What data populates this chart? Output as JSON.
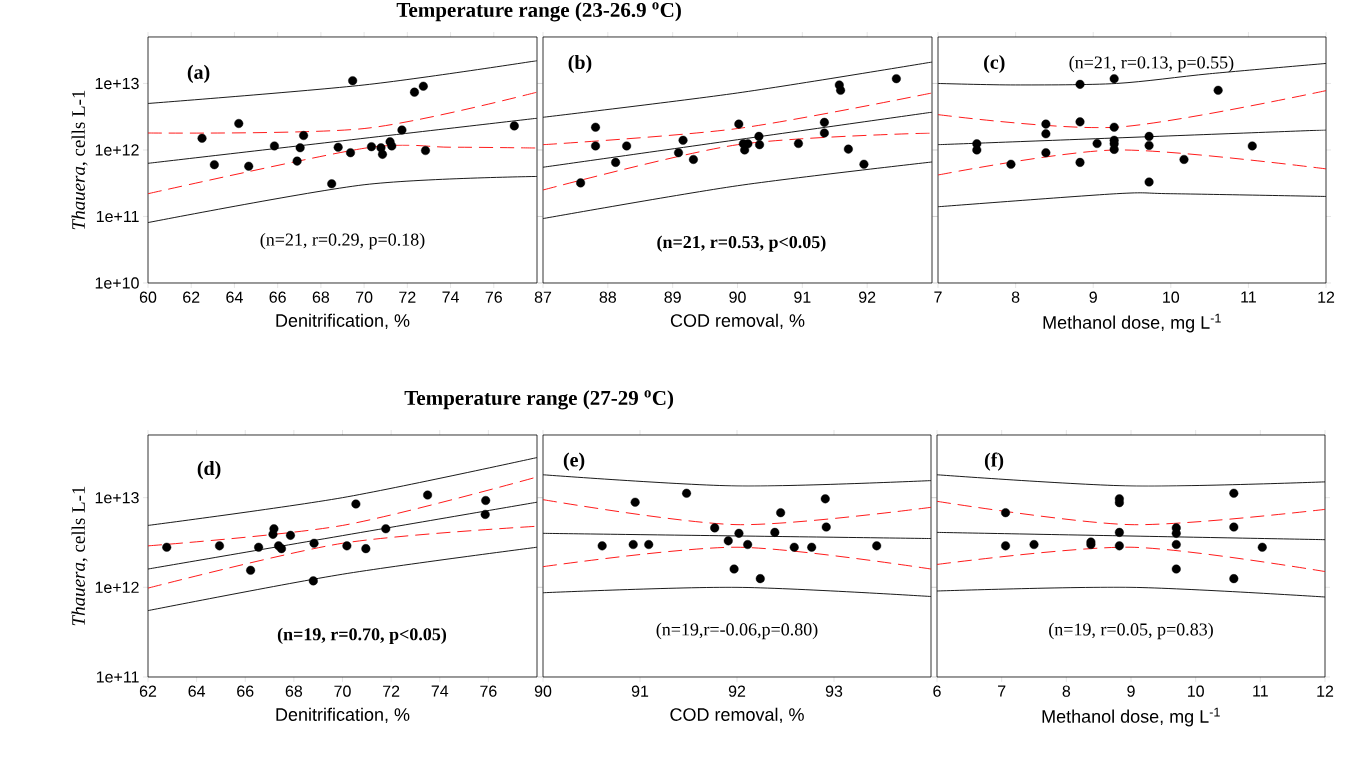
{
  "chart_data": [
    {
      "type": "scatter",
      "log": true,
      "xlabel": "Denitrification, %",
      "ylabel": "*Thauera*, cells L-1",
      "xlim": [
        60,
        78
      ],
      "ylim": [
        10000000000.0,
        50000000000000.0
      ],
      "xticks": [
        60,
        62,
        64,
        66,
        68,
        70,
        72,
        74,
        76
      ],
      "yticks": [
        {
          "value": 10000000000.0,
          "label": "1e+10"
        },
        {
          "value": 100000000000.0,
          "label": "1e+11"
        },
        {
          "value": 1000000000000.0,
          "label": "1e+12"
        },
        {
          "value": 10000000000000.0,
          "label": "1e+13"
        }
      ],
      "annotations": [
        "**(a)**",
        "(n=21, r=0.29, p=0.18)"
      ],
      "series": [
        {
          "marker": "circle",
          "color": "#000000",
          "x": [
            62.5,
            63.07,
            64.2,
            64.66,
            65.85,
            66.9,
            67.04,
            67.2,
            68.5,
            68.8,
            69.47,
            69.37,
            70.34,
            70.78,
            70.85,
            71.2,
            71.28,
            71.75,
            72.33,
            72.74,
            72.84,
            76.95
          ],
          "values": [
            1500000000000.0,
            600000000000.0,
            2500000000000.0,
            570000000000.0,
            1150000000000.0,
            680000000000.0,
            1080000000000.0,
            1650000000000.0,
            310000000000.0,
            1100000000000.0,
            11000000000000.0,
            910000000000.0,
            1120000000000.0,
            1080000000000.0,
            860000000000.0,
            1330000000000.0,
            1150000000000.0,
            2000000000000.0,
            7400000000000.0,
            9100000000000.0,
            980000000000.0,
            2300000000000.0
          ]
        },
        {
          "type": "line",
          "line_style": "solid",
          "color": "#000000",
          "x": [
            60,
            78
          ],
          "values": [
            630000000000.0,
            3000000000000.0
          ]
        },
        {
          "type": "line",
          "line_style": "solid",
          "color": "#000000",
          "x": [
            60,
            70,
            78
          ],
          "values": [
            5000000000000.0,
            9500000000000.0,
            22000000000000.0
          ]
        },
        {
          "type": "line",
          "line_style": "solid",
          "color": "#000000",
          "x": [
            60,
            70,
            78
          ],
          "values": [
            81000000000.0,
            300000000000.0,
            400000000000.0
          ]
        },
        {
          "type": "line",
          "line_style": "dashed",
          "color": "#ff0000",
          "x": [
            60,
            70,
            78
          ],
          "values": [
            1800000000000.0,
            2100000000000.0,
            7400000000000.0
          ]
        },
        {
          "type": "line",
          "line_style": "dashed",
          "color": "#ff0000",
          "x": [
            60,
            70,
            74,
            78
          ],
          "values": [
            220000000000.0,
            1060000000000.0,
            1100000000000.0,
            1070000000000.0
          ]
        }
      ]
    },
    {
      "type": "scatter",
      "log": true,
      "title": "Temperature range (23-26.9 $^{o}$C)",
      "xlabel": "COD removal, %",
      "xlim": [
        87,
        93
      ],
      "ylim": [
        10000000000.0,
        50000000000000.0
      ],
      "tick_labels": "x",
      "xticks": [
        87,
        88,
        89,
        90,
        91,
        92
      ],
      "yticks": [
        {
          "value": 10000000000.0,
          "label": null
        },
        {
          "value": 100000000000.0,
          "label": null
        },
        {
          "value": 1000000000000.0,
          "label": null
        },
        {
          "value": 10000000000000.0,
          "label": null
        }
      ],
      "annotations": [
        "**(b)**",
        "**(n=21, r=0.53, p<0.05)**"
      ],
      "series": [
        {
          "marker": "circle",
          "color": "#000000",
          "x": [
            87.58,
            87.81,
            87.81,
            88.12,
            88.29,
            89.09,
            89.16,
            89.32,
            90.02,
            90.09,
            90.16,
            90.11,
            90.33,
            90.34,
            90.94,
            91.34,
            91.34,
            91.57,
            91.59,
            91.71,
            91.95,
            92.45
          ],
          "values": [
            320000000000.0,
            2200000000000.0,
            1150000000000.0,
            650000000000.0,
            1150000000000.0,
            910000000000.0,
            1400000000000.0,
            720000000000.0,
            2450000000000.0,
            1240000000000.0,
            1240000000000.0,
            1000000000000.0,
            1600000000000.0,
            1200000000000.0,
            1250000000000.0,
            2600000000000.0,
            1800000000000.0,
            9500000000000.0,
            7900000000000.0,
            1030000000000.0,
            610000000000.0,
            11800000000000.0
          ]
        },
        {
          "type": "line",
          "line_style": "solid",
          "color": "#000000",
          "x": [
            87,
            93
          ],
          "values": [
            550000000000.0,
            3700000000000.0
          ]
        },
        {
          "type": "line",
          "line_style": "solid",
          "color": "#000000",
          "x": [
            87,
            90,
            93
          ],
          "values": [
            3100000000000.0,
            7200000000000.0,
            21000000000000.0
          ]
        },
        {
          "type": "line",
          "line_style": "solid",
          "color": "#000000",
          "x": [
            87,
            90,
            93
          ],
          "values": [
            93000000000.0,
            290000000000.0,
            660000000000.0
          ]
        },
        {
          "type": "line",
          "line_style": "dashed",
          "color": "#ff0000",
          "x": [
            87,
            90,
            93
          ],
          "values": [
            1200000000000.0,
            2100000000000.0,
            7200000000000.0
          ]
        },
        {
          "type": "line",
          "line_style": "dashed",
          "color": "#ff0000",
          "x": [
            87,
            90,
            93
          ],
          "values": [
            250000000000.0,
            1200000000000.0,
            1800000000000.0
          ]
        }
      ]
    },
    {
      "type": "scatter",
      "log": true,
      "xlabel": "Methanol dose, mg L$^{-1}$",
      "xlim": [
        7,
        12
      ],
      "ylim": [
        10000000000.0,
        50000000000000.0
      ],
      "tick_labels": "x",
      "xticks": [
        7,
        8,
        9,
        10,
        11,
        12
      ],
      "yticks": [
        {
          "value": 10000000000.0,
          "label": null
        },
        {
          "value": 100000000000.0,
          "label": null
        },
        {
          "value": 1000000000000.0,
          "label": null
        },
        {
          "value": 10000000000000.0,
          "label": null
        }
      ],
      "annotations": [
        "**(c)**",
        "(n=21, r=0.13, p=0.55)"
      ],
      "series": [
        {
          "marker": "circle",
          "color": "#000000",
          "x": [
            7.5,
            7.5,
            7.94,
            8.39,
            8.39,
            8.39,
            8.83,
            8.83,
            8.83,
            9.05,
            9.27,
            9.27,
            9.27,
            9.27,
            9.27,
            9.72,
            9.72,
            9.72,
            10.17,
            10.61,
            11.05
          ],
          "values": [
            1240000000000.0,
            1000000000000.0,
            610000000000.0,
            2450000000000.0,
            1750000000000.0,
            910000000000.0,
            9700000000000.0,
            2650000000000.0,
            650000000000.0,
            1250000000000.0,
            11800000000000.0,
            2200000000000.0,
            1400000000000.0,
            1240000000000.0,
            1020000000000.0,
            1600000000000.0,
            1170000000000.0,
            330000000000.0,
            720000000000.0,
            7900000000000.0,
            1150000000000.0
          ]
        },
        {
          "type": "line",
          "line_style": "solid",
          "color": "#000000",
          "x": [
            7,
            12
          ],
          "values": [
            1200000000000.0,
            2000000000000.0
          ]
        },
        {
          "type": "line",
          "line_style": "solid",
          "color": "#000000",
          "x": [
            7,
            8,
            9.3,
            10.5,
            12
          ],
          "values": [
            10000000000000.0,
            9500000000000.0,
            10000000000000.0,
            14000000000000.0,
            20000000000000.0
          ]
        },
        {
          "type": "line",
          "line_style": "solid",
          "color": "#000000",
          "x": [
            7,
            9.3,
            10,
            12
          ],
          "values": [
            140000000000.0,
            220000000000.0,
            220000000000.0,
            200000000000.0
          ]
        },
        {
          "type": "line",
          "line_style": "dashed",
          "color": "#ff0000",
          "x": [
            7,
            9.3,
            12
          ],
          "values": [
            3400000000000.0,
            2200000000000.0,
            7800000000000.0
          ]
        },
        {
          "type": "line",
          "line_style": "dashed",
          "color": "#ff0000",
          "x": [
            7,
            9.3,
            12
          ],
          "values": [
            420000000000.0,
            1000000000000.0,
            520000000000.0
          ]
        }
      ]
    },
    {
      "type": "scatter",
      "log": true,
      "xlabel": "Denitrification, %",
      "ylabel": "*Thauera*, cells L-1",
      "xlim": [
        62,
        78
      ],
      "ylim": [
        100000000000.0,
        50000000000000.0
      ],
      "xticks": [
        62,
        64,
        66,
        68,
        70,
        72,
        74,
        76
      ],
      "yticks": [
        {
          "value": 100000000000.0,
          "label": "1e+11"
        },
        {
          "value": 1000000000000.0,
          "label": "1e+12"
        },
        {
          "value": 10000000000000.0,
          "label": "1e+13"
        }
      ],
      "annotations": [
        "**(d)**",
        "**(n=19, r=0.70, p<0.05)**"
      ],
      "series": [
        {
          "marker": "circle",
          "color": "#000000",
          "x": [
            62.77,
            64.94,
            66.22,
            66.55,
            67.18,
            67.14,
            67.37,
            67.49,
            67.86,
            68.8,
            68.83,
            70.18,
            70.55,
            70.96,
            71.78,
            73.5,
            75.89,
            75.87
          ],
          "values": [
            2800000000000.0,
            2900000000000.0,
            1550000000000.0,
            2800000000000.0,
            4500000000000.0,
            3900000000000.0,
            2900000000000.0,
            2700000000000.0,
            3800000000000.0,
            1180000000000.0,
            3100000000000.0,
            2900000000000.0,
            8500000000000.0,
            2700000000000.0,
            4500000000000.0,
            10700000000000.0,
            9300000000000.0,
            6500000000000.0
          ]
        },
        {
          "type": "line",
          "line_style": "solid",
          "color": "#000000",
          "x": [
            62,
            78
          ],
          "values": [
            1600000000000.0,
            8900000000000.0
          ]
        },
        {
          "type": "line",
          "line_style": "solid",
          "color": "#000000",
          "x": [
            62,
            70,
            78
          ],
          "values": [
            4900000000000.0,
            10000000000000.0,
            28000000000000.0
          ]
        },
        {
          "type": "line",
          "line_style": "solid",
          "color": "#000000",
          "x": [
            62,
            70,
            78
          ],
          "values": [
            550000000000.0,
            1400000000000.0,
            2800000000000.0
          ]
        },
        {
          "type": "line",
          "line_style": "dashed",
          "color": "#ff0000",
          "x": [
            62,
            70,
            78
          ],
          "values": [
            2900000000000.0,
            4900000000000.0,
            17000000000000.0
          ]
        },
        {
          "type": "line",
          "line_style": "dashed",
          "color": "#ff0000",
          "x": [
            62,
            70,
            78
          ],
          "values": [
            980000000000.0,
            3100000000000.0,
            4800000000000.0
          ]
        }
      ]
    },
    {
      "type": "scatter",
      "log": true,
      "title": "Temperature range (27-29 $^{o}$C)",
      "xlabel": "COD removal, %",
      "xlim": [
        90,
        94
      ],
      "ylim": [
        100000000000.0,
        50000000000000.0
      ],
      "tick_labels": "x",
      "xticks": [
        90,
        91,
        92,
        93
      ],
      "yticks": [
        {
          "value": 100000000000.0,
          "label": null
        },
        {
          "value": 1000000000000.0,
          "label": null
        },
        {
          "value": 10000000000000.0,
          "label": null
        }
      ],
      "annotations": [
        "**(e)**",
        "(n=19,r=-0.06,p=0.80)"
      ],
      "series": [
        {
          "marker": "circle",
          "color": "#000000",
          "x": [
            90.61,
            90.95,
            90.93,
            91.09,
            91.48,
            91.77,
            91.91,
            91.97,
            92.02,
            92.11,
            92.24,
            92.39,
            92.45,
            92.59,
            92.77,
            92.91,
            92.92,
            93.44
          ],
          "values": [
            2900000000000.0,
            8900000000000.0,
            3000000000000.0,
            3000000000000.0,
            11200000000000.0,
            4600000000000.0,
            3300000000000.0,
            1600000000000.0,
            4000000000000.0,
            3000000000000.0,
            1250000000000.0,
            4100000000000.0,
            6800000000000.0,
            2800000000000.0,
            2800000000000.0,
            9700000000000.0,
            4700000000000.0,
            2900000000000.0
          ]
        },
        {
          "type": "line",
          "line_style": "solid",
          "color": "#000000",
          "x": [
            90,
            94
          ],
          "values": [
            4000000000000.0,
            3500000000000.0
          ]
        },
        {
          "type": "line",
          "line_style": "solid",
          "color": "#000000",
          "x": [
            90,
            92,
            94
          ],
          "values": [
            18000000000000.0,
            13500000000000.0,
            15500000000000.0
          ]
        },
        {
          "type": "line",
          "line_style": "solid",
          "color": "#000000",
          "x": [
            90,
            92,
            94
          ],
          "values": [
            870000000000.0,
            1000000000000.0,
            790000000000.0
          ]
        },
        {
          "type": "line",
          "line_style": "dashed",
          "color": "#ff0000",
          "x": [
            90,
            92,
            94
          ],
          "values": [
            9500000000000.0,
            5000000000000.0,
            7800000000000.0
          ]
        },
        {
          "type": "line",
          "line_style": "dashed",
          "color": "#ff0000",
          "x": [
            90,
            92,
            94
          ],
          "values": [
            1700000000000.0,
            2800000000000.0,
            1600000000000.0
          ]
        }
      ]
    },
    {
      "type": "scatter",
      "log": true,
      "xlabel": "Methanol dose, mg L$^{-1}$",
      "xlim": [
        6,
        12
      ],
      "ylim": [
        100000000000.0,
        50000000000000.0
      ],
      "tick_labels": "x",
      "xticks": [
        6,
        7,
        8,
        9,
        10,
        11,
        12
      ],
      "yticks": [
        {
          "value": 100000000000.0,
          "label": null
        },
        {
          "value": 1000000000000.0,
          "label": null
        },
        {
          "value": 10000000000000.0,
          "label": null
        }
      ],
      "annotations": [
        "**(f)**",
        "(n=19, r=0.05, p=0.83)"
      ],
      "series": [
        {
          "marker": "circle",
          "color": "#000000",
          "x": [
            7.06,
            7.06,
            7.5,
            8.38,
            8.38,
            8.82,
            8.82,
            8.82,
            8.82,
            9.7,
            9.7,
            9.7,
            9.7,
            10.59,
            10.59,
            10.59,
            11.03
          ],
          "values": [
            6800000000000.0,
            2900000000000.0,
            3000000000000.0,
            3200000000000.0,
            3000000000000.0,
            9700000000000.0,
            8800000000000.0,
            4100000000000.0,
            2900000000000.0,
            4600000000000.0,
            4000000000000.0,
            3000000000000.0,
            1600000000000.0,
            11200000000000.0,
            4700000000000.0,
            1250000000000.0,
            2800000000000.0
          ]
        },
        {
          "type": "line",
          "line_style": "solid",
          "color": "#000000",
          "x": [
            6,
            12
          ],
          "values": [
            4100000000000.0,
            3400000000000.0
          ]
        },
        {
          "type": "line",
          "line_style": "solid",
          "color": "#000000",
          "x": [
            6,
            9,
            12
          ],
          "values": [
            18000000000000.0,
            13500000000000.0,
            15000000000000.0
          ]
        },
        {
          "type": "line",
          "line_style": "solid",
          "color": "#000000",
          "x": [
            6,
            9,
            12
          ],
          "values": [
            910000000000.0,
            1000000000000.0,
            780000000000.0
          ]
        },
        {
          "type": "line",
          "line_style": "dashed",
          "color": "#ff0000",
          "x": [
            6,
            9,
            12
          ],
          "values": [
            9100000000000.0,
            5000000000000.0,
            7400000000000.0
          ]
        },
        {
          "type": "line",
          "line_style": "dashed",
          "color": "#ff0000",
          "x": [
            6,
            9,
            12
          ],
          "values": [
            1800000000000.0,
            2800000000000.0,
            1500000000000.0
          ]
        }
      ]
    }
  ]
}
